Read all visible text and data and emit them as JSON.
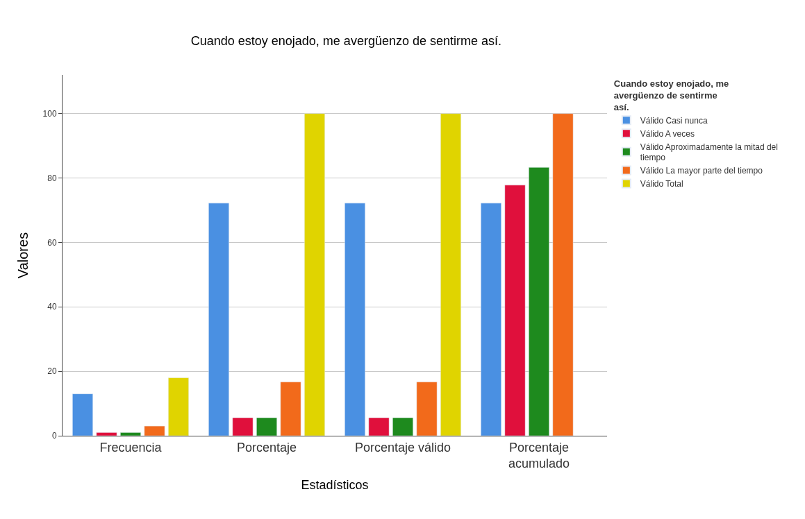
{
  "chart_data": {
    "type": "bar",
    "title": "Cuando estoy enojado, me avergüenzo de sentirme así.",
    "xlabel": "Estadísticos",
    "ylabel": "Valores",
    "legend_title": "Cuando estoy enojado, me avergüenzo de sentirme así.",
    "categories": [
      "Frecuencia",
      "Porcentaje",
      "Porcentaje válido",
      "Porcentaje acumulado"
    ],
    "series": [
      {
        "name": "Válido Casi nunca",
        "color": "#4a90e2",
        "values": [
          13,
          72.2,
          72.2,
          72.2
        ]
      },
      {
        "name": "Válido A veces",
        "color": "#e0103c",
        "values": [
          1,
          5.6,
          5.6,
          77.8
        ]
      },
      {
        "name": "Válido Aproximadamente la mitad del tiempo",
        "color": "#1e8a1e",
        "values": [
          1,
          5.6,
          5.6,
          83.3
        ]
      },
      {
        "name": "Válido La mayor parte del tiempo",
        "color": "#f26a1b",
        "values": [
          3,
          16.7,
          16.7,
          100
        ]
      },
      {
        "name": "Válido Total",
        "color": "#e0d400",
        "values": [
          18,
          100,
          100,
          null
        ]
      }
    ],
    "ylim": [
      0,
      112
    ],
    "yticks": [
      0,
      20,
      40,
      60,
      80,
      100
    ],
    "grid": "y",
    "legend": "top right"
  }
}
